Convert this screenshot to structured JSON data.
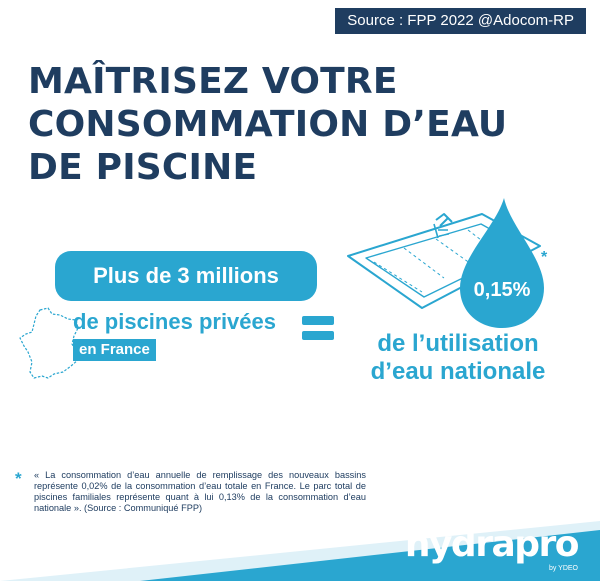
{
  "source": "Source : FPP 2022 @Adocom-RP",
  "title_lines": [
    "MAÎTRISEZ VOTRE",
    "CONSOMMATION D’EAU",
    "DE PISCINE"
  ],
  "stat": {
    "headline": "Plus de 3  millions",
    "line": "de piscines privées",
    "tag": "en France"
  },
  "equals": "=",
  "drop": {
    "value": "0,15%",
    "asterisk": "*"
  },
  "result_lines": [
    "de l’utilisation",
    "d’eau nationale"
  ],
  "footnote": {
    "marker": "*",
    "text": "« La consommation d’eau annuelle de remplissage des nouveaux bassins représente 0,02% de la consommation d’eau totale en France. Le parc total de piscines familiales représente quant à lui 0,13% de la consommation d’eau nationale ». (Source : Communiqué FPP)"
  },
  "brand": {
    "name": "hydrapro",
    "sub": "by YDEO"
  },
  "icons": [
    "france-map-icon",
    "pool-icon",
    "water-drop-icon"
  ],
  "colors": {
    "navy": "#1f3d60",
    "blue": "#2aa6d0",
    "white": "#ffffff"
  }
}
